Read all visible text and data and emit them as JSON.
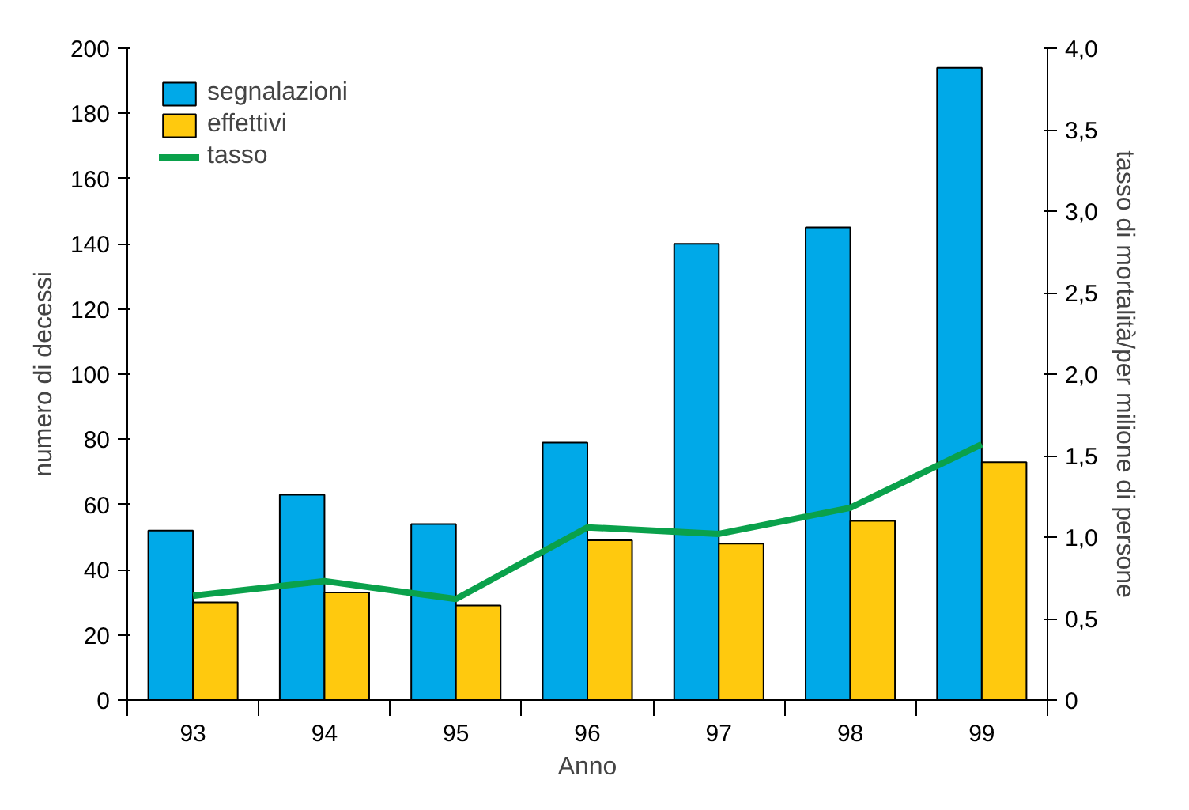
{
  "chart_data": {
    "type": "bar",
    "xlabel": "Anno",
    "ylabel": "numero di decessi",
    "y2label": "tasso di mortalità/per milione di persone",
    "categories": [
      "93",
      "94",
      "95",
      "96",
      "97",
      "98",
      "99"
    ],
    "series": [
      {
        "name": "segnalazioni",
        "color": "#00a9e8",
        "values": [
          52,
          63,
          54,
          79,
          140,
          145,
          194
        ]
      },
      {
        "name": "effettivi",
        "color": "#ffc90e",
        "values": [
          30,
          33,
          29,
          49,
          48,
          55,
          73
        ]
      },
      {
        "name": "tasso",
        "type": "line",
        "axis": "y2",
        "color": "#0aa14b",
        "values": [
          0.64,
          0.73,
          0.62,
          1.06,
          1.02,
          1.18,
          1.57
        ]
      }
    ],
    "ylim": [
      0,
      200
    ],
    "yticks": [
      0,
      20,
      40,
      60,
      80,
      100,
      120,
      140,
      160,
      180,
      200
    ],
    "y2lim": [
      0,
      4
    ],
    "y2ticks": [
      0,
      {
        "value": 0.5,
        "label": "0,5"
      },
      {
        "value": 1,
        "label": "1,0"
      },
      {
        "value": 1.5,
        "label": "1,5"
      },
      {
        "value": 2,
        "label": "2,0"
      },
      {
        "value": 2.5,
        "label": "2,5"
      },
      {
        "value": 3,
        "label": "3,0"
      },
      {
        "value": 3.5,
        "label": "3,5"
      },
      {
        "value": 4,
        "label": "4,0"
      }
    ],
    "grid": false,
    "legend": "top left",
    "line_style": "solid",
    "marker": "none"
  }
}
